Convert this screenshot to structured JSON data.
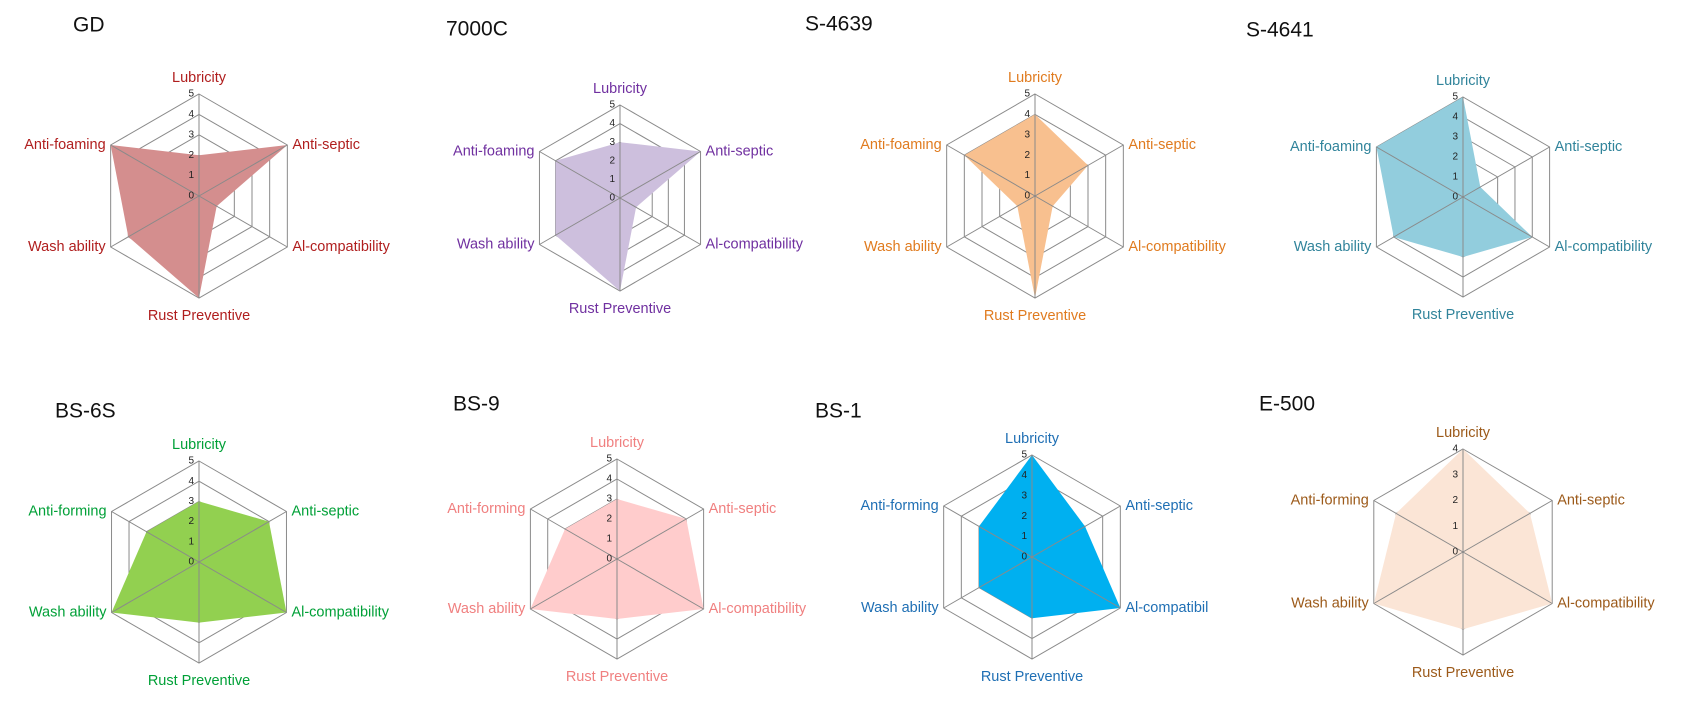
{
  "chart_data": [
    {
      "type": "radar",
      "title": "GD",
      "axes": [
        "Lubricity",
        "Anti-septic",
        "Al-compatibility",
        "Rust Preventive",
        "Wash ability",
        "Anti-foaming"
      ],
      "values": [
        2,
        5,
        1,
        5,
        4,
        5
      ],
      "ticks": [
        "0",
        "1",
        "2",
        "3",
        "4",
        "5"
      ],
      "rmax": 5,
      "fill_color": "#d48e8e",
      "label_color": "#b01e1e"
    },
    {
      "type": "radar",
      "title": "7000C",
      "axes": [
        "Lubricity",
        "Anti-septic",
        "Al-compatibility",
        "Rust Preventive",
        "Wash ability",
        "Anti-foaming"
      ],
      "values": [
        3,
        5,
        1,
        5,
        4,
        4
      ],
      "ticks": [
        "0",
        "1",
        "2",
        "3",
        "4",
        "5"
      ],
      "rmax": 5,
      "fill_color": "#cdbfdd",
      "label_color": "#7030a0"
    },
    {
      "type": "radar",
      "title": "S-4639",
      "axes": [
        "Lubricity",
        "Anti-septic",
        "Al-compatibility",
        "Rust Preventive",
        "Wash ability",
        "Anti-foaming"
      ],
      "values": [
        4,
        3,
        1,
        5,
        1,
        4
      ],
      "ticks": [
        "0",
        "1",
        "2",
        "3",
        "4",
        "5"
      ],
      "rmax": 5,
      "fill_color": "#f8c08f",
      "label_color": "#e07b1f"
    },
    {
      "type": "radar",
      "title": "S-4641",
      "axes": [
        "Lubricity",
        "Anti-septic",
        "Al-compatibility",
        "Rust Preventive",
        "Wash ability",
        "Anti-foaming"
      ],
      "values": [
        5,
        1,
        4,
        3,
        4,
        5
      ],
      "ticks": [
        "0",
        "1",
        "2",
        "3",
        "4",
        "5"
      ],
      "rmax": 5,
      "fill_color": "#92cddd",
      "label_color": "#31849b"
    },
    {
      "type": "radar",
      "title": "BS-6S",
      "axes": [
        "Lubricity",
        "Anti-septic",
        "Al-compatibility",
        "Rust Preventive",
        "Wash ability",
        "Anti-forming"
      ],
      "values": [
        3,
        4,
        5,
        3,
        5,
        3
      ],
      "ticks": [
        "0",
        "1",
        "2",
        "3",
        "4",
        "5"
      ],
      "rmax": 5,
      "fill_color": "#92d050",
      "label_color": "#00a037"
    },
    {
      "type": "radar",
      "title": "BS-9",
      "axes": [
        "Lubricity",
        "Anti-septic",
        "Al-compatibility",
        "Rust Preventive",
        "Wash ability",
        "Anti-forming"
      ],
      "values": [
        3,
        4,
        5,
        3,
        5,
        3
      ],
      "ticks": [
        "0",
        "1",
        "2",
        "3",
        "4",
        "5"
      ],
      "rmax": 5,
      "fill_color": "#ffcccc",
      "label_color": "#f08080"
    },
    {
      "type": "radar",
      "title": "BS-1",
      "axes": [
        "Lubricity",
        "Anti-septic",
        "Al-compatibility",
        "Rust Preventive",
        "Wash ability",
        "Anti-forming"
      ],
      "axis_labels_shown": [
        "Lubricity",
        "Anti-septic",
        "Al-compatibil",
        "Rust Preventive",
        "Wash ability",
        "Anti-forming"
      ],
      "values": [
        5,
        3,
        5,
        3,
        3,
        3
      ],
      "ticks": [
        "0",
        "1",
        "2",
        "3",
        "4",
        "5"
      ],
      "rmax": 5,
      "fill_color": "#00b0f0",
      "label_color": "#1f6fb4"
    },
    {
      "type": "radar",
      "title": "E-500",
      "axes": [
        "Lubricity",
        "Anti-septic",
        "Al-compatibility",
        "Rust Preventive",
        "Wash ability",
        "Anti-forming"
      ],
      "values": [
        4,
        3,
        4,
        3,
        4,
        3
      ],
      "ticks": [
        "0",
        "1",
        "2",
        "3",
        "4"
      ],
      "rmax": 4,
      "fill_color": "#fbe5d6",
      "label_color": "#9c5a1a"
    }
  ]
}
